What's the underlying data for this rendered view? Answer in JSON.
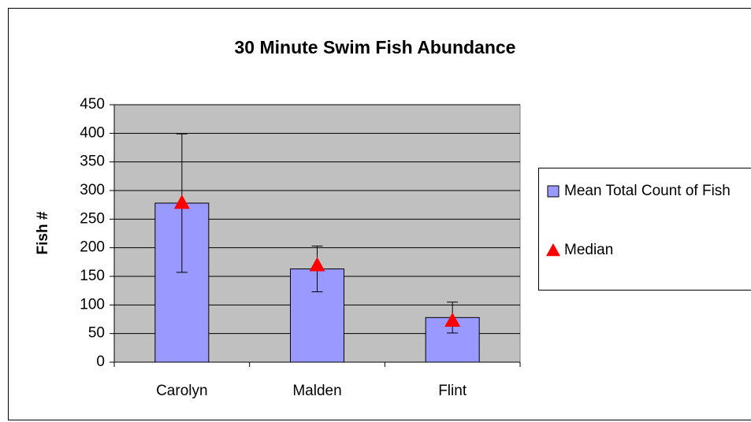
{
  "chart_data": {
    "type": "bar",
    "title": "30 Minute Swim Fish Abundance",
    "y_label": "Fish #",
    "categories": [
      "Carolyn",
      "Malden",
      "Flint"
    ],
    "series": [
      {
        "name": "Mean Total Count of Fish",
        "color": "#9999ff",
        "values": [
          278,
          163,
          78
        ],
        "errors": [
          121,
          40,
          27
        ]
      },
      {
        "name": "Median",
        "color": "#ff0000",
        "marker": "triangle",
        "values": [
          279,
          170,
          73
        ]
      }
    ],
    "ylim": [
      0,
      450
    ],
    "yticks": [
      0,
      50,
      100,
      150,
      200,
      250,
      300,
      350,
      400,
      450
    ],
    "grid": true,
    "legend": "right"
  }
}
